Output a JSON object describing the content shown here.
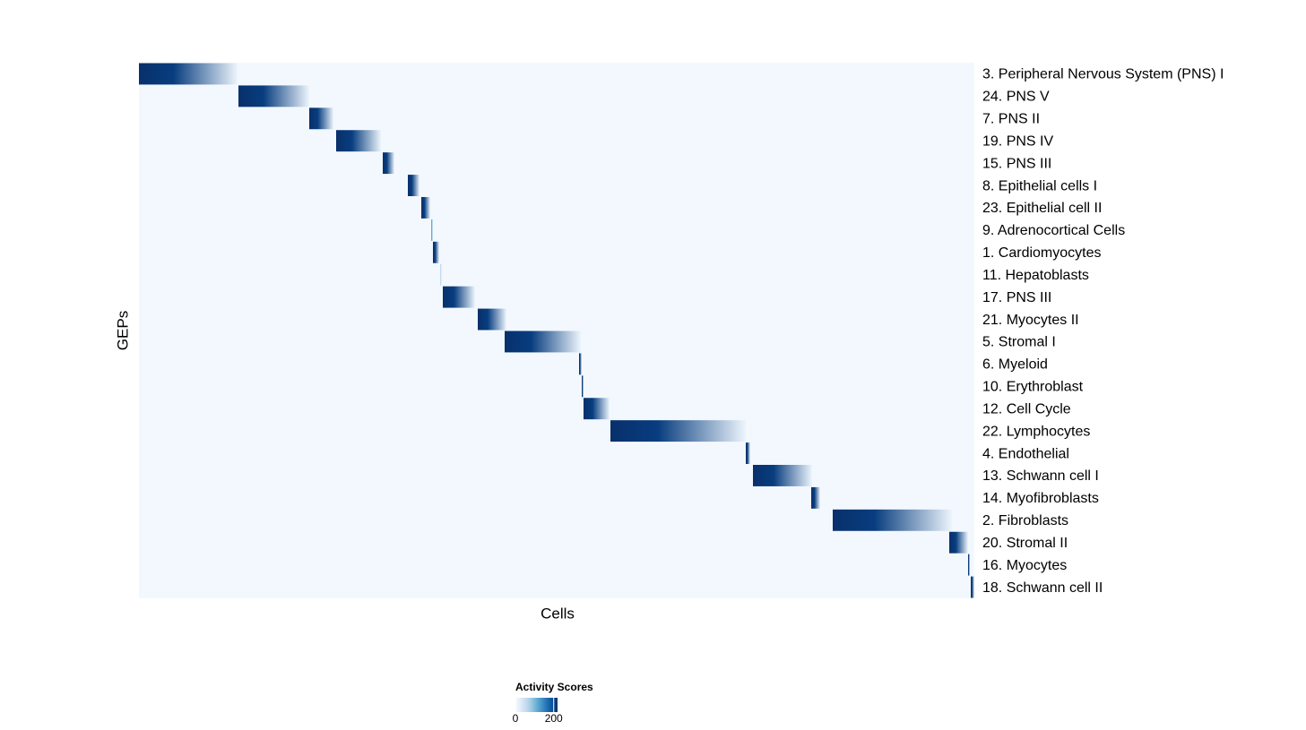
{
  "chart_data": {
    "type": "heatmap",
    "xlabel": "Cells",
    "ylabel": "GEPs",
    "colormap": "Blues",
    "xlim": [
      0,
      932
    ],
    "rows": [
      {
        "name": "3. Peripheral Nervous System (PNS) I",
        "start": 0,
        "end": 110,
        "peak": 220
      },
      {
        "name": "24. PNS V",
        "start": 111,
        "end": 190,
        "peak": 220
      },
      {
        "name": "7. PNS II",
        "start": 190,
        "end": 217,
        "peak": 220
      },
      {
        "name": "19. PNS IV",
        "start": 220,
        "end": 270,
        "peak": 220
      },
      {
        "name": "15. PNS III",
        "start": 272,
        "end": 285,
        "peak": 220
      },
      {
        "name": "8. Epithelial cells I",
        "start": 300,
        "end": 313,
        "peak": 220
      },
      {
        "name": "23. Epithelial cell II",
        "start": 315,
        "end": 325,
        "peak": 220
      },
      {
        "name": "9. Adrenocortical Cells",
        "start": 326,
        "end": 328,
        "peak": 120
      },
      {
        "name": "1. Cardiomyocytes",
        "start": 328,
        "end": 335,
        "peak": 220
      },
      {
        "name": "11. Hepatoblasts",
        "start": 336,
        "end": 338,
        "peak": 60
      },
      {
        "name": "17. PNS III",
        "start": 339,
        "end": 375,
        "peak": 220
      },
      {
        "name": "21. Myocytes II",
        "start": 378,
        "end": 410,
        "peak": 220
      },
      {
        "name": "5. Stromal I",
        "start": 408,
        "end": 493,
        "peak": 220
      },
      {
        "name": "6. Myeloid",
        "start": 491,
        "end": 494,
        "peak": 220
      },
      {
        "name": "10. Erythroblast",
        "start": 494,
        "end": 496,
        "peak": 220
      },
      {
        "name": "12. Cell Cycle",
        "start": 496,
        "end": 525,
        "peak": 220
      },
      {
        "name": "22. Lymphocytes",
        "start": 526,
        "end": 677,
        "peak": 220
      },
      {
        "name": "4. Endothelial",
        "start": 677,
        "end": 682,
        "peak": 220
      },
      {
        "name": "13. Schwann cell I",
        "start": 685,
        "end": 751,
        "peak": 220
      },
      {
        "name": "14. Myofibroblasts",
        "start": 750,
        "end": 760,
        "peak": 220
      },
      {
        "name": "2. Fibroblasts",
        "start": 774,
        "end": 907,
        "peak": 220
      },
      {
        "name": "20. Stromal II",
        "start": 904,
        "end": 925,
        "peak": 220
      },
      {
        "name": "16. Myocytes",
        "start": 925,
        "end": 927,
        "peak": 220
      },
      {
        "name": "18. Schwann cell II",
        "start": 928,
        "end": 932,
        "peak": 220
      }
    ],
    "colorbar_title": "Activity Scores",
    "clim": [
      0,
      220
    ],
    "cticks": [
      0,
      200
    ]
  }
}
